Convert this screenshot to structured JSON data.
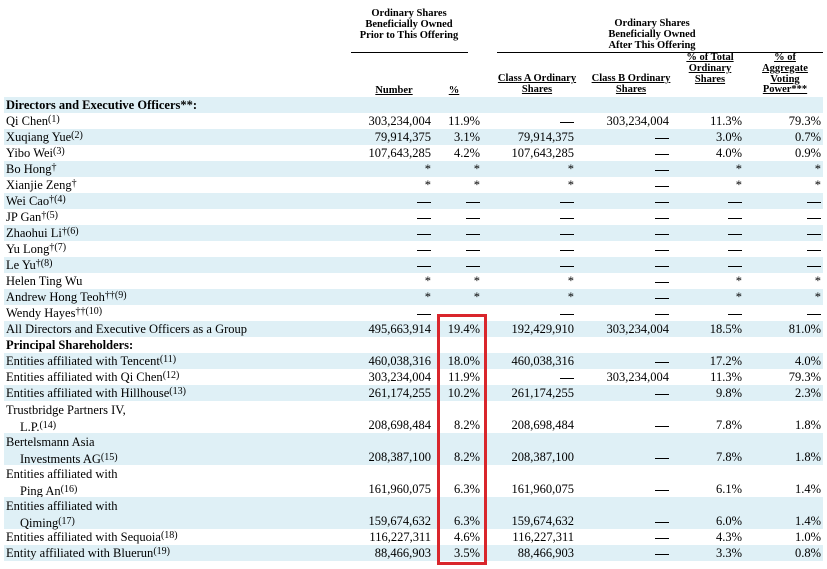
{
  "headers": {
    "prior_group": "Ordinary Shares Beneficially Owned Prior to This Offering",
    "after_group": "Ordinary Shares Beneficially Owned After This Offering",
    "number": "Number",
    "pct": "%",
    "class_a": "Class A Ordinary Shares",
    "class_b": "Class B Ordinary Shares",
    "pct_total": "% of Total Ordinary Shares",
    "pct_voting": "% of Aggregate Voting Power***"
  },
  "rows": [
    {
      "type": "section",
      "name": "Directors and Executive Officers**:",
      "shade": true
    },
    {
      "name": "Qi Chen",
      "fn": "(1)",
      "number": "303,234,004",
      "pct": "11.9%",
      "class_a": "—",
      "class_b": "303,234,004",
      "total": "11.3%",
      "voting": "79.3%",
      "shade": false
    },
    {
      "name": "Xuqiang Yue",
      "fn": "(2)",
      "number": "79,914,375",
      "pct": "3.1%",
      "class_a": "79,914,375",
      "class_b": "—",
      "total": "3.0%",
      "voting": "0.7%",
      "shade": true
    },
    {
      "name": "Yibo Wei",
      "fn": "(3)",
      "number": "107,643,285",
      "pct": "4.2%",
      "class_a": "107,643,285",
      "class_b": "—",
      "total": "4.0%",
      "voting": "0.9%",
      "shade": false
    },
    {
      "name": "Bo Hong",
      "fn": "†",
      "number": "*",
      "pct": "*",
      "class_a": "*",
      "class_b": "—",
      "total": "*",
      "voting": "*",
      "shade": true
    },
    {
      "name": "Xianjie Zeng",
      "fn": "†",
      "number": "*",
      "pct": "*",
      "class_a": "*",
      "class_b": "—",
      "total": "*",
      "voting": "*",
      "shade": false
    },
    {
      "name": "Wei Cao",
      "fn": "†(4)",
      "number": "—",
      "pct": "—",
      "class_a": "—",
      "class_b": "—",
      "total": "—",
      "voting": "—",
      "shade": true
    },
    {
      "name": "JP Gan",
      "fn": "†(5)",
      "number": "—",
      "pct": "—",
      "class_a": "—",
      "class_b": "—",
      "total": "—",
      "voting": "—",
      "shade": false
    },
    {
      "name": "Zhaohui Li",
      "fn": "†(6)",
      "number": "—",
      "pct": "—",
      "class_a": "—",
      "class_b": "—",
      "total": "—",
      "voting": "—",
      "shade": true
    },
    {
      "name": "Yu Long",
      "fn": "†(7)",
      "number": "—",
      "pct": "—",
      "class_a": "—",
      "class_b": "—",
      "total": "—",
      "voting": "—",
      "shade": false
    },
    {
      "name": "Le Yu",
      "fn": "†(8)",
      "number": "—",
      "pct": "—",
      "class_a": "—",
      "class_b": "—",
      "total": "—",
      "voting": "—",
      "shade": true
    },
    {
      "name": "Helen Ting Wu",
      "fn": "",
      "number": "*",
      "pct": "*",
      "class_a": "*",
      "class_b": "—",
      "total": "*",
      "voting": "*",
      "shade": false
    },
    {
      "name": "Andrew Hong Teoh",
      "fn": "††(9)",
      "number": "*",
      "pct": "*",
      "class_a": "*",
      "class_b": "—",
      "total": "*",
      "voting": "*",
      "shade": true
    },
    {
      "name": "Wendy Hayes",
      "fn": "††(10)",
      "number": "—",
      "pct": "—",
      "class_a": "—",
      "class_b": "—",
      "total": "—",
      "voting": "—",
      "shade": false
    },
    {
      "name": "All Directors and Executive Officers as a Group",
      "fn": "",
      "number": "495,663,914",
      "pct": "19.4%",
      "class_a": "192,429,910",
      "class_b": "303,234,004",
      "total": "18.5%",
      "voting": "81.0%",
      "shade": true
    },
    {
      "type": "section",
      "name": "Principal Shareholders:",
      "shade": false
    },
    {
      "name": "Entities affiliated with Tencent",
      "fn": "(11)",
      "number": "460,038,316",
      "pct": "18.0%",
      "class_a": "460,038,316",
      "class_b": "—",
      "total": "17.2%",
      "voting": "4.0%",
      "shade": true
    },
    {
      "name": "Entities affiliated with Qi Chen",
      "fn": "(12)",
      "number": "303,234,004",
      "pct": "11.9%",
      "class_a": "—",
      "class_b": "303,234,004",
      "total": "11.3%",
      "voting": "79.3%",
      "shade": false
    },
    {
      "name": "Entities affiliated with Hillhouse",
      "fn": "(13)",
      "number": "261,174,255",
      "pct": "10.2%",
      "class_a": "261,174,255",
      "class_b": "—",
      "total": "9.8%",
      "voting": "2.3%",
      "shade": true
    },
    {
      "name": "Trustbridge Partners IV,",
      "name2": "L.P.",
      "fn": "(14)",
      "number": "208,698,484",
      "pct": "8.2%",
      "class_a": "208,698,484",
      "class_b": "—",
      "total": "7.8%",
      "voting": "1.8%",
      "shade": false
    },
    {
      "name": "Bertelsmann Asia",
      "name2": "Investments AG",
      "fn": "(15)",
      "number": "208,387,100",
      "pct": "8.2%",
      "class_a": "208,387,100",
      "class_b": "—",
      "total": "7.8%",
      "voting": "1.8%",
      "shade": true
    },
    {
      "name": "Entities affiliated with",
      "name2": "Ping An",
      "fn": "(16)",
      "number": "161,960,075",
      "pct": "6.3%",
      "class_a": "161,960,075",
      "class_b": "—",
      "total": "6.1%",
      "voting": "1.4%",
      "shade": false
    },
    {
      "name": "Entities affiliated with",
      "name2": "Qiming",
      "fn": "(17)",
      "number": "159,674,632",
      "pct": "6.3%",
      "class_a": "159,674,632",
      "class_b": "—",
      "total": "6.0%",
      "voting": "1.4%",
      "shade": true
    },
    {
      "name": "Entities affiliated with Sequoia",
      "fn": "(18)",
      "number": "116,227,311",
      "pct": "4.6%",
      "class_a": "116,227,311",
      "class_b": "—",
      "total": "4.3%",
      "voting": "1.0%",
      "shade": false
    },
    {
      "name": "Entity affiliated with Bluerun",
      "fn": "(19)",
      "number": "88,466,903",
      "pct": "3.5%",
      "class_a": "88,466,903",
      "class_b": "—",
      "total": "3.3%",
      "voting": "0.8%",
      "shade": true
    }
  ]
}
